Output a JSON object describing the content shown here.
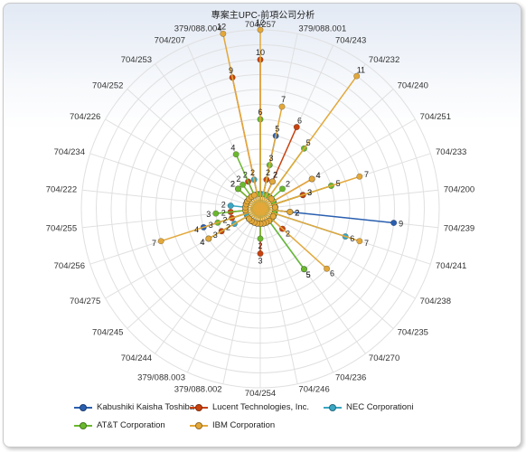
{
  "title": "專案主UPC-前項公司分析",
  "chart_data": {
    "type": "radar",
    "title": "專案主UPC-前項公司分析",
    "categories": [
      "704/257",
      "379/088.001",
      "704/243",
      "704/232",
      "704/240",
      "704/251",
      "704/233",
      "704/200",
      "704/239",
      "704/241",
      "704/238",
      "704/235",
      "704/270",
      "704/236",
      "704/246",
      "704/254",
      "379/088.002",
      "379/088.003",
      "704/244",
      "704/245",
      "704/275",
      "704/256",
      "704/255",
      "704/222",
      "704/234",
      "704/226",
      "704/252",
      "704/253",
      "704/207",
      "379/088.004"
    ],
    "rmax": 12,
    "grid": true,
    "legend_position": "bottom",
    "series": [
      {
        "name": "Kabushiki Kaisha Toshiba",
        "color": "#2a5fb0",
        "values": [
          1,
          5,
          2,
          1,
          1,
          1,
          3,
          1,
          9,
          1,
          1,
          1,
          1,
          1,
          1,
          1,
          1,
          1,
          1,
          1,
          1,
          4,
          1,
          1,
          1,
          1,
          1,
          1,
          1,
          1
        ]
      },
      {
        "name": "Lucent Technologies, Inc.",
        "color": "#c8420f",
        "values": [
          10,
          2,
          6,
          1,
          1,
          4,
          3,
          1,
          2,
          1,
          1,
          2,
          1,
          1,
          1,
          3,
          1,
          1,
          1,
          1,
          3,
          2,
          2,
          1,
          1,
          1,
          2,
          1,
          2,
          9
        ]
      },
      {
        "name": "NEC Corporationi",
        "color": "#3aa6c2",
        "values": [
          1,
          1,
          1,
          1,
          1,
          1,
          1,
          1,
          2,
          6,
          1,
          1,
          5,
          1,
          1,
          1,
          1,
          1,
          1,
          1,
          2,
          1,
          1,
          2,
          1,
          1,
          1,
          1,
          1,
          2
        ]
      },
      {
        "name": "AT&T Corporation",
        "color": "#6ab82e",
        "values": [
          6,
          3,
          1,
          5,
          2,
          1,
          5,
          1,
          1,
          1,
          1,
          1,
          5,
          1,
          1,
          2,
          1,
          1,
          1,
          1,
          4,
          3,
          3,
          1,
          1,
          1,
          2,
          2,
          4,
          1
        ]
      },
      {
        "name": "IBM Corporation",
        "color": "#e3a83a",
        "values": [
          12,
          7,
          2,
          11,
          1,
          4,
          7,
          1,
          2,
          7,
          1,
          6,
          1,
          1,
          1,
          1,
          1,
          1,
          1,
          1,
          4,
          7,
          1,
          1,
          1,
          1,
          1,
          1,
          1,
          12
        ]
      }
    ]
  }
}
